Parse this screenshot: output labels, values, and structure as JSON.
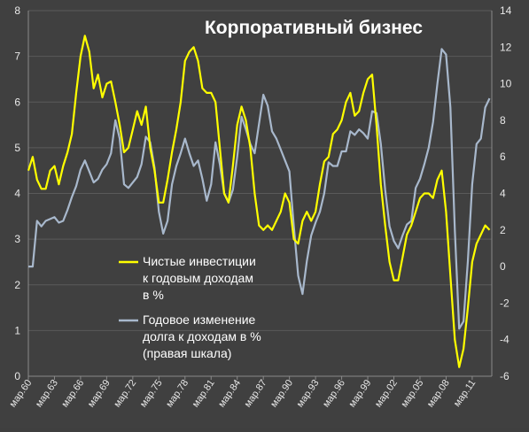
{
  "chart_data": {
    "type": "line",
    "title": "Корпоративный бизнес",
    "background": "#404040",
    "grid": true,
    "gridColor": "#5a5a5a",
    "tickColor": "#e8e8e8",
    "x": {
      "min": 1960.25,
      "max": 2013.5,
      "ticks": [
        1960.25,
        1963.25,
        1966.25,
        1969.25,
        1972.25,
        1975.25,
        1978.25,
        1981.25,
        1984.25,
        1987.25,
        1990.25,
        1993.25,
        1996.25,
        1999.25,
        2002.25,
        2005.25,
        2008.25,
        2011.25
      ],
      "tick_labels": [
        "мар.60",
        "мар.63",
        "мар.66",
        "мар.69",
        "мар.72",
        "мар.75",
        "мар.78",
        "мар.81",
        "мар.84",
        "мар.87",
        "мар.90",
        "мар.93",
        "мар.96",
        "мар.99",
        "мар.02",
        "мар.05",
        "мар.08",
        "мар.11"
      ]
    },
    "y_left": {
      "min": 0,
      "max": 8,
      "ticks": [
        0,
        1,
        2,
        3,
        4,
        5,
        6,
        7,
        8
      ]
    },
    "y_right": {
      "min": -6,
      "max": 14,
      "ticks": [
        -6,
        -4,
        -2,
        0,
        2,
        4,
        6,
        8,
        10,
        12,
        14
      ]
    },
    "legend": {
      "position": "bottom-center",
      "items": [
        {
          "label_lines": [
            "Чистые инвестиции",
            "к годовым доходам",
            "в %"
          ]
        },
        {
          "label_lines": [
            "Годовое изменение",
            "долга к доходам в %",
            "(правая шкала)"
          ]
        }
      ]
    },
    "series": [
      {
        "name": "Чистые инвестиции к годовым доходам в %",
        "axis": "left",
        "color": "#ffff00",
        "points": [
          [
            1960.25,
            4.5
          ],
          [
            1960.75,
            4.8
          ],
          [
            1961.25,
            4.3
          ],
          [
            1961.75,
            4.1
          ],
          [
            1962.25,
            4.1
          ],
          [
            1962.75,
            4.5
          ],
          [
            1963.25,
            4.6
          ],
          [
            1963.75,
            4.2
          ],
          [
            1964.25,
            4.6
          ],
          [
            1964.75,
            4.9
          ],
          [
            1965.25,
            5.3
          ],
          [
            1965.75,
            6.2
          ],
          [
            1966.25,
            7.0
          ],
          [
            1966.75,
            7.45
          ],
          [
            1967.25,
            7.1
          ],
          [
            1967.75,
            6.3
          ],
          [
            1968.25,
            6.6
          ],
          [
            1968.75,
            6.1
          ],
          [
            1969.25,
            6.4
          ],
          [
            1969.75,
            6.45
          ],
          [
            1970.25,
            6.0
          ],
          [
            1970.75,
            5.5
          ],
          [
            1971.25,
            4.9
          ],
          [
            1971.75,
            5.0
          ],
          [
            1972.25,
            5.4
          ],
          [
            1972.75,
            5.8
          ],
          [
            1973.25,
            5.5
          ],
          [
            1973.75,
            5.9
          ],
          [
            1974.25,
            5.0
          ],
          [
            1974.75,
            4.5
          ],
          [
            1975.25,
            3.8
          ],
          [
            1975.75,
            3.8
          ],
          [
            1976.25,
            4.3
          ],
          [
            1976.75,
            4.9
          ],
          [
            1977.25,
            5.4
          ],
          [
            1977.75,
            6.0
          ],
          [
            1978.25,
            6.9
          ],
          [
            1978.75,
            7.1
          ],
          [
            1979.25,
            7.2
          ],
          [
            1979.75,
            6.9
          ],
          [
            1980.25,
            6.3
          ],
          [
            1980.75,
            6.2
          ],
          [
            1981.25,
            6.2
          ],
          [
            1981.75,
            6.0
          ],
          [
            1982.25,
            5.0
          ],
          [
            1982.75,
            4.0
          ],
          [
            1983.25,
            3.8
          ],
          [
            1983.75,
            4.6
          ],
          [
            1984.25,
            5.5
          ],
          [
            1984.75,
            5.9
          ],
          [
            1985.25,
            5.6
          ],
          [
            1985.75,
            5.0
          ],
          [
            1986.25,
            4.0
          ],
          [
            1986.75,
            3.3
          ],
          [
            1987.25,
            3.2
          ],
          [
            1987.75,
            3.3
          ],
          [
            1988.25,
            3.2
          ],
          [
            1988.75,
            3.4
          ],
          [
            1989.25,
            3.6
          ],
          [
            1989.75,
            4.0
          ],
          [
            1990.25,
            3.8
          ],
          [
            1990.75,
            3.0
          ],
          [
            1991.25,
            2.9
          ],
          [
            1991.75,
            3.4
          ],
          [
            1992.25,
            3.6
          ],
          [
            1992.75,
            3.4
          ],
          [
            1993.25,
            3.6
          ],
          [
            1993.75,
            4.2
          ],
          [
            1994.25,
            4.7
          ],
          [
            1994.75,
            4.8
          ],
          [
            1995.25,
            5.3
          ],
          [
            1995.75,
            5.4
          ],
          [
            1996.25,
            5.6
          ],
          [
            1996.75,
            6.0
          ],
          [
            1997.25,
            6.2
          ],
          [
            1997.75,
            5.7
          ],
          [
            1998.25,
            5.8
          ],
          [
            1998.75,
            6.2
          ],
          [
            1999.25,
            6.5
          ],
          [
            1999.75,
            6.6
          ],
          [
            2000.25,
            5.5
          ],
          [
            2000.75,
            4.2
          ],
          [
            2001.25,
            3.3
          ],
          [
            2001.75,
            2.5
          ],
          [
            2002.25,
            2.1
          ],
          [
            2002.75,
            2.1
          ],
          [
            2003.25,
            2.6
          ],
          [
            2003.75,
            3.1
          ],
          [
            2004.25,
            3.3
          ],
          [
            2004.75,
            3.6
          ],
          [
            2005.25,
            3.9
          ],
          [
            2005.75,
            4.0
          ],
          [
            2006.25,
            4.0
          ],
          [
            2006.75,
            3.9
          ],
          [
            2007.25,
            4.3
          ],
          [
            2007.75,
            4.5
          ],
          [
            2008.25,
            3.6
          ],
          [
            2008.75,
            2.2
          ],
          [
            2009.25,
            0.8
          ],
          [
            2009.75,
            0.2
          ],
          [
            2010.25,
            0.6
          ],
          [
            2010.75,
            1.5
          ],
          [
            2011.25,
            2.5
          ],
          [
            2011.75,
            2.9
          ],
          [
            2012.25,
            3.1
          ],
          [
            2012.75,
            3.3
          ],
          [
            2013.25,
            3.2
          ]
        ]
      },
      {
        "name": "Годовое изменение долга к доходам в %",
        "axis": "right",
        "color": "#a8b8cc",
        "points": [
          [
            1960.25,
            0.0
          ],
          [
            1960.75,
            0.0
          ],
          [
            1961.25,
            2.5
          ],
          [
            1961.75,
            2.2
          ],
          [
            1962.25,
            2.5
          ],
          [
            1962.75,
            2.6
          ],
          [
            1963.25,
            2.7
          ],
          [
            1963.75,
            2.4
          ],
          [
            1964.25,
            2.5
          ],
          [
            1964.75,
            3.1
          ],
          [
            1965.25,
            3.8
          ],
          [
            1965.75,
            4.4
          ],
          [
            1966.25,
            5.3
          ],
          [
            1966.75,
            5.8
          ],
          [
            1967.25,
            5.2
          ],
          [
            1967.75,
            4.6
          ],
          [
            1968.25,
            4.8
          ],
          [
            1968.75,
            5.3
          ],
          [
            1969.25,
            5.6
          ],
          [
            1969.75,
            6.2
          ],
          [
            1970.25,
            8.0
          ],
          [
            1970.75,
            7.0
          ],
          [
            1971.25,
            4.5
          ],
          [
            1971.75,
            4.3
          ],
          [
            1972.25,
            4.6
          ],
          [
            1972.75,
            4.9
          ],
          [
            1973.25,
            5.6
          ],
          [
            1973.75,
            7.1
          ],
          [
            1974.25,
            6.8
          ],
          [
            1974.75,
            5.4
          ],
          [
            1975.25,
            3.0
          ],
          [
            1975.75,
            1.8
          ],
          [
            1976.25,
            2.5
          ],
          [
            1976.75,
            4.5
          ],
          [
            1977.25,
            5.5
          ],
          [
            1977.75,
            6.2
          ],
          [
            1978.25,
            7.0
          ],
          [
            1978.75,
            6.2
          ],
          [
            1979.25,
            5.5
          ],
          [
            1979.75,
            5.8
          ],
          [
            1980.25,
            4.8
          ],
          [
            1980.75,
            3.6
          ],
          [
            1981.25,
            4.5
          ],
          [
            1981.75,
            6.8
          ],
          [
            1982.25,
            5.6
          ],
          [
            1982.75,
            4.0
          ],
          [
            1983.25,
            3.5
          ],
          [
            1983.75,
            4.2
          ],
          [
            1984.25,
            6.0
          ],
          [
            1984.75,
            8.2
          ],
          [
            1985.25,
            7.5
          ],
          [
            1985.75,
            6.7
          ],
          [
            1986.25,
            6.2
          ],
          [
            1986.75,
            7.8
          ],
          [
            1987.25,
            9.4
          ],
          [
            1987.75,
            8.8
          ],
          [
            1988.25,
            7.4
          ],
          [
            1988.75,
            7.0
          ],
          [
            1989.25,
            6.4
          ],
          [
            1989.75,
            5.8
          ],
          [
            1990.25,
            5.2
          ],
          [
            1990.75,
            2.2
          ],
          [
            1991.25,
            -0.5
          ],
          [
            1991.75,
            -1.5
          ],
          [
            1992.25,
            0.3
          ],
          [
            1992.75,
            1.7
          ],
          [
            1993.25,
            2.4
          ],
          [
            1993.75,
            3.0
          ],
          [
            1994.25,
            4.0
          ],
          [
            1994.75,
            5.7
          ],
          [
            1995.25,
            5.5
          ],
          [
            1995.75,
            5.5
          ],
          [
            1996.25,
            6.3
          ],
          [
            1996.75,
            6.3
          ],
          [
            1997.25,
            7.4
          ],
          [
            1997.75,
            7.2
          ],
          [
            1998.25,
            7.5
          ],
          [
            1998.75,
            7.3
          ],
          [
            1999.25,
            7.0
          ],
          [
            1999.75,
            8.5
          ],
          [
            2000.25,
            8.4
          ],
          [
            2000.75,
            6.7
          ],
          [
            2001.25,
            4.2
          ],
          [
            2001.75,
            2.2
          ],
          [
            2002.25,
            1.4
          ],
          [
            2002.75,
            1.0
          ],
          [
            2003.25,
            1.7
          ],
          [
            2003.75,
            2.3
          ],
          [
            2004.25,
            2.5
          ],
          [
            2004.75,
            4.3
          ],
          [
            2005.25,
            4.8
          ],
          [
            2005.75,
            5.6
          ],
          [
            2006.25,
            6.5
          ],
          [
            2006.75,
            7.9
          ],
          [
            2007.25,
            10.0
          ],
          [
            2007.75,
            11.9
          ],
          [
            2008.25,
            11.6
          ],
          [
            2008.75,
            8.7
          ],
          [
            2009.25,
            2.0
          ],
          [
            2009.75,
            -3.4
          ],
          [
            2010.25,
            -3.0
          ],
          [
            2010.75,
            0.3
          ],
          [
            2011.25,
            4.5
          ],
          [
            2011.75,
            6.7
          ],
          [
            2012.25,
            7.0
          ],
          [
            2012.75,
            8.7
          ],
          [
            2013.25,
            9.2
          ]
        ]
      }
    ]
  }
}
